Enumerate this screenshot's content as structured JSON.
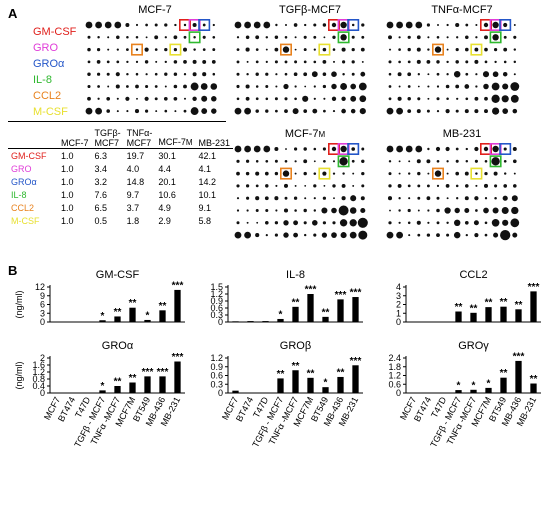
{
  "panel_a": {
    "letter": "A",
    "analytes": [
      {
        "label": "GM-CSF",
        "color": "#e0201c"
      },
      {
        "label": "GRO",
        "color": "#e03cd8"
      },
      {
        "label": "GROα",
        "color": "#2456c8"
      },
      {
        "label": "IL-8",
        "color": "#2fb82f"
      },
      {
        "label": "CCL2",
        "color": "#e8821e"
      },
      {
        "label": "M-CSF",
        "color": "#e8e030"
      }
    ],
    "membranes": [
      {
        "title": "MCF-7",
        "sub": "",
        "level": 1
      },
      {
        "title": "TGFβ-MCF7",
        "sub": "",
        "level": 2
      },
      {
        "title": "TNFα-MCF7",
        "sub": "",
        "level": 2
      },
      {
        "title": "MCF-7",
        "sub": "M",
        "level": 3
      },
      {
        "title": "MB-231",
        "sub": "",
        "level": 3
      }
    ],
    "table": {
      "headers": [
        "",
        "MCF-7",
        "TGFβ-\nMCF7",
        "TNFα-\nMCF7",
        "MCF-7",
        "MB-231"
      ],
      "header_sub": [
        "",
        "",
        "",
        "",
        "M",
        ""
      ],
      "rows": [
        {
          "label": "GM-CSF",
          "values": [
            "1.0",
            "6.3",
            "19.7",
            "30.1",
            "42.1"
          ]
        },
        {
          "label": "GRO",
          "values": [
            "1.0",
            "3.4",
            "4.0",
            "4.4",
            "4.1"
          ]
        },
        {
          "label": "GROα",
          "values": [
            "1.0",
            "3.2",
            "14.8",
            "20.1",
            "14.2"
          ]
        },
        {
          "label": "IL-8",
          "values": [
            "1.0",
            "7.6",
            "9.7",
            "10.6",
            "10.1"
          ]
        },
        {
          "label": "CCL2",
          "values": [
            "1.0",
            "6.5",
            "3.7",
            "4.9",
            "9.1"
          ]
        },
        {
          "label": "M-CSF",
          "values": [
            "1.0",
            "0.5",
            "1.8",
            "2.9",
            "5.8"
          ]
        }
      ]
    }
  },
  "panel_b": {
    "letter": "B",
    "ylabel": "(ng/ml)",
    "categories": [
      "MCF7",
      "BT474",
      "T47D",
      "TGFβ - MCF7",
      "TNFα -MCF7",
      "MCF7M",
      "BT549",
      "MB-436",
      "MB-231"
    ]
  },
  "chart_data": [
    {
      "type": "bar",
      "title": "GM-CSF",
      "ylabel": "(ng/ml)",
      "ylim": [
        0,
        12
      ],
      "yticks": [
        0,
        3,
        6,
        9,
        12
      ],
      "categories": [
        "MCF7",
        "BT474",
        "T47D",
        "TGFβ - MCF7",
        "TNFα -MCF7",
        "MCF7M",
        "BT549",
        "MB-436",
        "MB-231"
      ],
      "values": [
        0.05,
        0.05,
        0.05,
        0.6,
        1.9,
        4.9,
        0.7,
        4.0,
        11.0
      ],
      "annotations": [
        "",
        "",
        "",
        "*",
        "**",
        "**",
        "*",
        "**",
        "***"
      ]
    },
    {
      "type": "bar",
      "title": "IL-8",
      "ylabel": "",
      "ylim": [
        0,
        1.5
      ],
      "yticks": [
        0,
        0.3,
        0.6,
        0.9,
        1.2,
        1.5
      ],
      "categories": [
        "MCF7",
        "BT474",
        "T47D",
        "TGFβ - MCF7",
        "TNFα -MCF7",
        "MCF7M",
        "BT549",
        "MB-436",
        "MB-231"
      ],
      "values": [
        0.03,
        0.04,
        0.04,
        0.13,
        0.65,
        1.2,
        0.22,
        0.97,
        1.07
      ],
      "annotations": [
        "",
        "",
        "",
        "*",
        "**",
        "***",
        "**",
        "***",
        "***"
      ]
    },
    {
      "type": "bar",
      "title": "CCL2",
      "ylabel": "",
      "ylim": [
        0,
        4
      ],
      "yticks": [
        0,
        1,
        2,
        3,
        4
      ],
      "categories": [
        "MCF7",
        "BT474",
        "T47D",
        "TGFβ - MCF7",
        "TNFα -MCF7",
        "MCF7M",
        "BT549",
        "MB-436",
        "MB-231"
      ],
      "values": [
        0.03,
        0.03,
        0.03,
        1.2,
        1.05,
        1.7,
        1.75,
        1.45,
        3.5
      ],
      "annotations": [
        "",
        "",
        "",
        "**",
        "**",
        "**",
        "**",
        "**",
        "***"
      ]
    },
    {
      "type": "bar",
      "title": "GROα",
      "ylabel": "(ng/ml)",
      "ylim": [
        0,
        2.0
      ],
      "yticks": [
        0,
        0.4,
        0.8,
        1.2,
        1.6,
        2.0
      ],
      "categories": [
        "MCF7",
        "BT474",
        "T47D",
        "TGFβ - MCF7",
        "TNFα -MCF7",
        "MCF7M",
        "BT549",
        "MB-436",
        "MB-231"
      ],
      "values": [
        0.01,
        0.01,
        0.02,
        0.15,
        0.4,
        0.6,
        0.95,
        0.95,
        1.8
      ],
      "annotations": [
        "",
        "",
        "",
        "*",
        "**",
        "**",
        "***",
        "***",
        "***"
      ]
    },
    {
      "type": "bar",
      "title": "GROβ",
      "ylabel": "",
      "ylim": [
        0,
        1.2
      ],
      "yticks": [
        0,
        0.3,
        0.6,
        0.9,
        1.2
      ],
      "categories": [
        "MCF7",
        "BT474",
        "T47D",
        "TGFβ - MCF7",
        "TNFα -MCF7",
        "MCF7M",
        "BT549",
        "MB-436",
        "MB-231"
      ],
      "values": [
        0.08,
        0.01,
        0.01,
        0.5,
        0.78,
        0.52,
        0.2,
        0.55,
        0.95
      ],
      "annotations": [
        "",
        "",
        "",
        "**",
        "**",
        "**",
        "*",
        "**",
        "***"
      ]
    },
    {
      "type": "bar",
      "title": "GROγ",
      "ylabel": "",
      "ylim": [
        0,
        2.4
      ],
      "yticks": [
        0,
        0.6,
        1.2,
        1.8,
        2.4
      ],
      "categories": [
        "MCF7",
        "BT474",
        "T47D",
        "TGFβ - MCF7",
        "TNFα -MCF7",
        "MCF7M",
        "BT549",
        "MB-436",
        "MB-231"
      ],
      "values": [
        0.02,
        0.01,
        0.01,
        0.2,
        0.22,
        0.35,
        1.05,
        2.2,
        0.65
      ],
      "annotations": [
        "",
        "",
        "",
        "*",
        "*",
        "*",
        "**",
        "***",
        "**"
      ]
    }
  ]
}
